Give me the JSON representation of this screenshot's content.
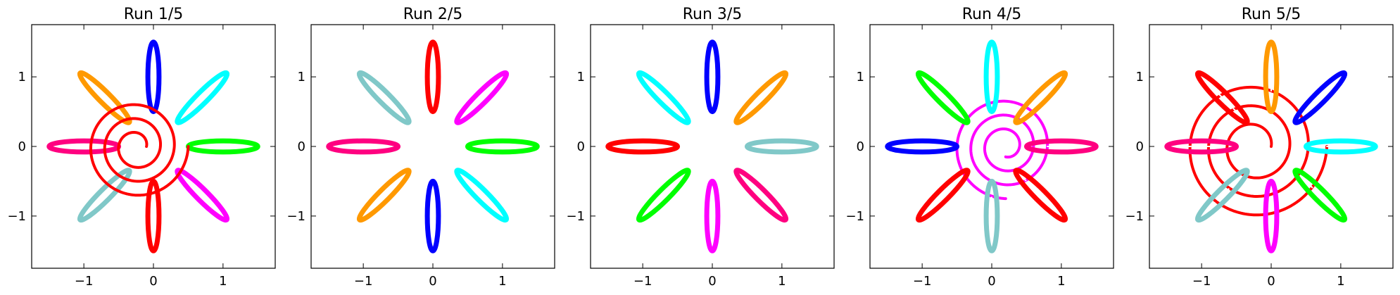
{
  "chart_data": [
    {
      "type": "scatter",
      "title": "Run 1/5",
      "xlim": [
        -1.75,
        1.75
      ],
      "ylim": [
        -1.75,
        1.75
      ],
      "xticks": [
        -1,
        0,
        1
      ],
      "yticks": [
        -1,
        0,
        1
      ],
      "xtick_labels": [
        "−1",
        "0",
        "1"
      ],
      "ytick_labels": [
        "−1",
        "0",
        "1"
      ],
      "grid": false,
      "series": [
        {
          "shape": "ellipse",
          "color": "#0000ff",
          "center": [
            0,
            1
          ],
          "angle_deg": 90,
          "semi_axes": [
            0.5,
            0.08
          ]
        },
        {
          "shape": "ellipse",
          "color": "#00ffff",
          "center": [
            0.7,
            0.7
          ],
          "angle_deg": 45,
          "semi_axes": [
            0.5,
            0.08
          ]
        },
        {
          "shape": "ellipse",
          "color": "#00ff00",
          "center": [
            1,
            0
          ],
          "angle_deg": 0,
          "semi_axes": [
            0.5,
            0.08
          ]
        },
        {
          "shape": "ellipse",
          "color": "#ff00ff",
          "center": [
            0.7,
            -0.7
          ],
          "angle_deg": -45,
          "semi_axes": [
            0.5,
            0.08
          ]
        },
        {
          "shape": "ellipse",
          "color": "#ff0000",
          "center": [
            0,
            -1
          ],
          "angle_deg": 90,
          "semi_axes": [
            0.5,
            0.08
          ]
        },
        {
          "shape": "ellipse",
          "color": "#80c8c8",
          "center": [
            -0.7,
            -0.7
          ],
          "angle_deg": 45,
          "semi_axes": [
            0.5,
            0.08
          ]
        },
        {
          "shape": "ellipse",
          "color": "#ff0080",
          "center": [
            -1,
            0
          ],
          "angle_deg": 0,
          "semi_axes": [
            0.5,
            0.08
          ]
        },
        {
          "shape": "ellipse",
          "color": "#ff9900",
          "center": [
            -0.7,
            0.7
          ],
          "angle_deg": -45,
          "semi_axes": [
            0.5,
            0.08
          ]
        },
        {
          "shape": "spiral",
          "color": "#ff0000",
          "center": [
            -0.25,
            0
          ],
          "start_angle_deg": 0,
          "turns": 3,
          "r_start": 0.15,
          "r_end": 0.75
        }
      ]
    },
    {
      "type": "scatter",
      "title": "Run 2/5",
      "xlim": [
        -1.75,
        1.75
      ],
      "ylim": [
        -1.75,
        1.75
      ],
      "xticks": [
        -1,
        0,
        1
      ],
      "yticks": [
        -1,
        0,
        1
      ],
      "xtick_labels": [
        "−1",
        "0",
        "1"
      ],
      "ytick_labels": [
        "−1",
        "0",
        "1"
      ],
      "grid": false,
      "series": [
        {
          "shape": "ellipse",
          "color": "#ff0000",
          "center": [
            0,
            1
          ],
          "angle_deg": 90,
          "semi_axes": [
            0.5,
            0.08
          ]
        },
        {
          "shape": "ellipse",
          "color": "#ff00ff",
          "center": [
            0.7,
            0.7
          ],
          "angle_deg": 45,
          "semi_axes": [
            0.5,
            0.08
          ]
        },
        {
          "shape": "ellipse",
          "color": "#00ff00",
          "center": [
            1,
            0
          ],
          "angle_deg": 0,
          "semi_axes": [
            0.5,
            0.08
          ]
        },
        {
          "shape": "ellipse",
          "color": "#00ffff",
          "center": [
            0.7,
            -0.7
          ],
          "angle_deg": -45,
          "semi_axes": [
            0.5,
            0.08
          ]
        },
        {
          "shape": "ellipse",
          "color": "#0000ff",
          "center": [
            0,
            -1
          ],
          "angle_deg": 90,
          "semi_axes": [
            0.5,
            0.08
          ]
        },
        {
          "shape": "ellipse",
          "color": "#ff9900",
          "center": [
            -0.7,
            -0.7
          ],
          "angle_deg": 45,
          "semi_axes": [
            0.5,
            0.08
          ]
        },
        {
          "shape": "ellipse",
          "color": "#ff0080",
          "center": [
            -1,
            0
          ],
          "angle_deg": 0,
          "semi_axes": [
            0.5,
            0.08
          ]
        },
        {
          "shape": "ellipse",
          "color": "#80c8c8",
          "center": [
            -0.7,
            0.7
          ],
          "angle_deg": -45,
          "semi_axes": [
            0.5,
            0.08
          ]
        }
      ]
    },
    {
      "type": "scatter",
      "title": "Run 3/5",
      "xlim": [
        -1.75,
        1.75
      ],
      "ylim": [
        -1.75,
        1.75
      ],
      "xticks": [
        -1,
        0,
        1
      ],
      "yticks": [
        -1,
        0,
        1
      ],
      "xtick_labels": [
        "−1",
        "0",
        "1"
      ],
      "ytick_labels": [
        "−1",
        "0",
        "1"
      ],
      "grid": false,
      "series": [
        {
          "shape": "ellipse",
          "color": "#0000ff",
          "center": [
            0,
            1
          ],
          "angle_deg": 90,
          "semi_axes": [
            0.5,
            0.08
          ]
        },
        {
          "shape": "ellipse",
          "color": "#ff9900",
          "center": [
            0.7,
            0.7
          ],
          "angle_deg": 45,
          "semi_axes": [
            0.5,
            0.08
          ]
        },
        {
          "shape": "ellipse",
          "color": "#80c8c8",
          "center": [
            1,
            0
          ],
          "angle_deg": 0,
          "semi_axes": [
            0.5,
            0.08
          ]
        },
        {
          "shape": "ellipse",
          "color": "#ff0080",
          "center": [
            0.7,
            -0.7
          ],
          "angle_deg": -45,
          "semi_axes": [
            0.5,
            0.08
          ]
        },
        {
          "shape": "ellipse",
          "color": "#ff00ff",
          "center": [
            0,
            -1
          ],
          "angle_deg": 90,
          "semi_axes": [
            0.5,
            0.08
          ]
        },
        {
          "shape": "ellipse",
          "color": "#00ff00",
          "center": [
            -0.7,
            -0.7
          ],
          "angle_deg": 45,
          "semi_axes": [
            0.5,
            0.08
          ]
        },
        {
          "shape": "ellipse",
          "color": "#ff0000",
          "center": [
            -1,
            0
          ],
          "angle_deg": 0,
          "semi_axes": [
            0.5,
            0.08
          ]
        },
        {
          "shape": "ellipse",
          "color": "#00ffff",
          "center": [
            -0.7,
            0.7
          ],
          "angle_deg": -45,
          "semi_axes": [
            0.5,
            0.08
          ]
        }
      ]
    },
    {
      "type": "scatter",
      "title": "Run 4/5",
      "xlim": [
        -1.75,
        1.75
      ],
      "ylim": [
        -1.75,
        1.75
      ],
      "xticks": [
        -1,
        0,
        1
      ],
      "yticks": [
        -1,
        0,
        1
      ],
      "xtick_labels": [
        "−1",
        "0",
        "1"
      ],
      "ytick_labels": [
        "−1",
        "0",
        "1"
      ],
      "grid": false,
      "series": [
        {
          "shape": "spiral",
          "color": "#ff00ff",
          "center": [
            0.2,
            0
          ],
          "start_angle_deg": 270,
          "turns": 3,
          "r_start": 0.15,
          "r_end": 0.75
        },
        {
          "shape": "ellipse",
          "color": "#00ffff",
          "center": [
            0,
            1
          ],
          "angle_deg": 90,
          "semi_axes": [
            0.5,
            0.08
          ]
        },
        {
          "shape": "ellipse",
          "color": "#ff9900",
          "center": [
            0.7,
            0.7
          ],
          "angle_deg": 45,
          "semi_axes": [
            0.5,
            0.08
          ]
        },
        {
          "shape": "ellipse",
          "color": "#ff0080",
          "center": [
            1,
            0
          ],
          "angle_deg": 0,
          "semi_axes": [
            0.5,
            0.08
          ]
        },
        {
          "shape": "ellipse",
          "color": "#ff0000",
          "center": [
            0.7,
            -0.7
          ],
          "angle_deg": -45,
          "semi_axes": [
            0.5,
            0.08
          ]
        },
        {
          "shape": "ellipse",
          "color": "#80c8c8",
          "center": [
            0,
            -1
          ],
          "angle_deg": 90,
          "semi_axes": [
            0.5,
            0.08
          ]
        },
        {
          "shape": "ellipse",
          "color": "#ff0000",
          "center": [
            -0.7,
            -0.7
          ],
          "angle_deg": 45,
          "semi_axes": [
            0.5,
            0.08
          ]
        },
        {
          "shape": "ellipse",
          "color": "#0000ff",
          "center": [
            -1,
            0
          ],
          "angle_deg": 0,
          "semi_axes": [
            0.5,
            0.08
          ]
        },
        {
          "shape": "ellipse",
          "color": "#00ff00",
          "center": [
            -0.7,
            0.7
          ],
          "angle_deg": -45,
          "semi_axes": [
            0.5,
            0.08
          ]
        }
      ]
    },
    {
      "type": "scatter",
      "title": "Run 5/5",
      "xlim": [
        -1.75,
        1.75
      ],
      "ylim": [
        -1.75,
        1.75
      ],
      "xticks": [
        -1,
        0,
        1
      ],
      "yticks": [
        -1,
        0,
        1
      ],
      "xtick_labels": [
        "−1",
        "0",
        "1"
      ],
      "ytick_labels": [
        "−1",
        "0",
        "1"
      ],
      "grid": false,
      "series": [
        {
          "shape": "spiral",
          "color": "#ff0000",
          "center": [
            -0.25,
            0
          ],
          "start_angle_deg": 0,
          "turns": 3,
          "r_start": 0.25,
          "r_end": 1.05
        },
        {
          "shape": "ellipse",
          "color": "#ff9900",
          "center": [
            0,
            1
          ],
          "angle_deg": 90,
          "semi_axes": [
            0.5,
            0.08
          ]
        },
        {
          "shape": "ellipse",
          "color": "#0000ff",
          "center": [
            0.7,
            0.7
          ],
          "angle_deg": 45,
          "semi_axes": [
            0.5,
            0.08
          ]
        },
        {
          "shape": "ellipse",
          "color": "#00ffff",
          "center": [
            1,
            0
          ],
          "angle_deg": 0,
          "semi_axes": [
            0.5,
            0.08
          ]
        },
        {
          "shape": "ellipse",
          "color": "#00ff00",
          "center": [
            0.7,
            -0.7
          ],
          "angle_deg": -45,
          "semi_axes": [
            0.5,
            0.08
          ]
        },
        {
          "shape": "ellipse",
          "color": "#ff00ff",
          "center": [
            0,
            -1
          ],
          "angle_deg": 90,
          "semi_axes": [
            0.5,
            0.08
          ]
        },
        {
          "shape": "ellipse",
          "color": "#80c8c8",
          "center": [
            -0.7,
            -0.7
          ],
          "angle_deg": 45,
          "semi_axes": [
            0.5,
            0.08
          ]
        },
        {
          "shape": "ellipse",
          "color": "#ff0080",
          "center": [
            -1,
            0
          ],
          "angle_deg": 0,
          "semi_axes": [
            0.5,
            0.08
          ]
        },
        {
          "shape": "ellipse",
          "color": "#ff0000",
          "center": [
            -0.7,
            0.7
          ],
          "angle_deg": -45,
          "semi_axes": [
            0.5,
            0.08
          ]
        }
      ]
    }
  ]
}
